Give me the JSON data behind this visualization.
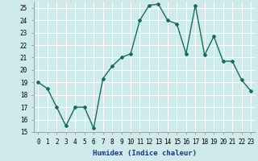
{
  "xlabel": "Humidex (Indice chaleur)",
  "x": [
    0,
    1,
    2,
    3,
    4,
    5,
    6,
    7,
    8,
    9,
    10,
    11,
    12,
    13,
    14,
    15,
    16,
    17,
    18,
    19,
    20,
    21,
    22,
    23
  ],
  "y": [
    19,
    18.5,
    17,
    15.5,
    17,
    17,
    15.3,
    19.3,
    20.3,
    21,
    21.3,
    24,
    25.2,
    25.3,
    24,
    23.7,
    21.3,
    25.2,
    21.2,
    22.7,
    20.7,
    20.7,
    19.2,
    18.3
  ],
  "line_color": "#1a6b5e",
  "marker": "D",
  "marker_size": 2.0,
  "background_color": "#ceeaea",
  "grid_color": "#ffffff",
  "ylim": [
    15,
    25.5
  ],
  "xlim": [
    -0.5,
    23.5
  ],
  "yticks": [
    15,
    16,
    17,
    18,
    19,
    20,
    21,
    22,
    23,
    24,
    25
  ],
  "xticks": [
    0,
    1,
    2,
    3,
    4,
    5,
    6,
    7,
    8,
    9,
    10,
    11,
    12,
    13,
    14,
    15,
    16,
    17,
    18,
    19,
    20,
    21,
    22,
    23
  ],
  "xlabel_fontsize": 6.5,
  "tick_fontsize": 5.5,
  "line_width": 1.0
}
